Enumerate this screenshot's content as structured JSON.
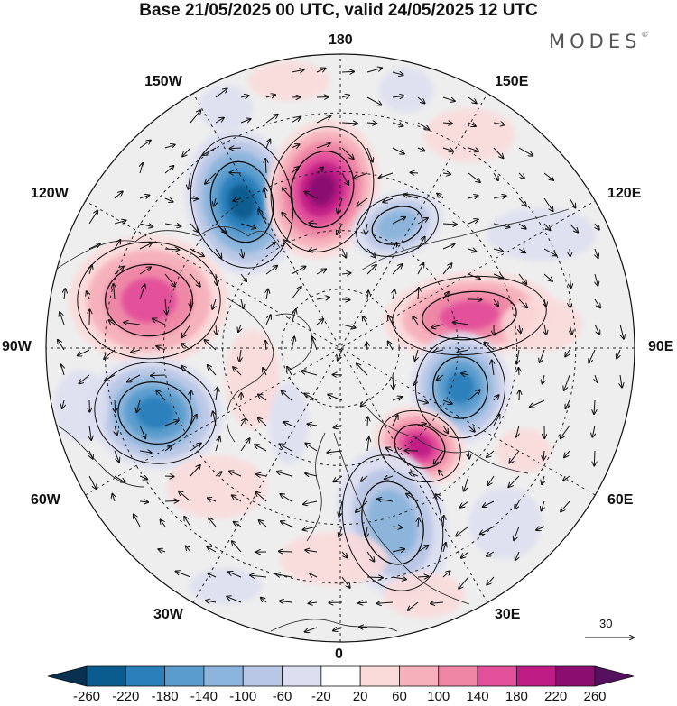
{
  "title": "Base 21/05/2025 00 UTC, valid 24/05/2025 12 UTC",
  "brand": "MODES",
  "brand_mark": "©",
  "longitude_labels": {
    "top": "180",
    "bottom": "0",
    "left": "90W",
    "right": "90E",
    "upper_left_far": "120W",
    "upper_left_near": "150W",
    "upper_right_near": "150E",
    "upper_right_far": "120E",
    "lower_left_far": "60W",
    "lower_left_near": "30W",
    "lower_right_near": "30E",
    "lower_right_far": "60E"
  },
  "vector_scale": {
    "label": "30"
  },
  "colorbar": {
    "labels": [
      "-260",
      "-220",
      "-180",
      "-140",
      "-100",
      "-60",
      "-20",
      "20",
      "60",
      "100",
      "140",
      "180",
      "220",
      "260"
    ],
    "colors": [
      "#08304f",
      "#0b5c8e",
      "#2b7fbb",
      "#5a9ccd",
      "#8bb5dc",
      "#b9c7e6",
      "#dcdff0",
      "#ffffff",
      "#fbdada",
      "#f6b0bb",
      "#ef86a6",
      "#e2509a",
      "#bf1d85",
      "#8a0d6f",
      "#561060"
    ]
  },
  "map": {
    "projection": "north-polar-stereographic",
    "background": "#eeeeee",
    "anomaly_centers": [
      {
        "name": "low-north-pacific-west",
        "sign": "negative",
        "level": -220
      },
      {
        "name": "high-north-pacific",
        "sign": "positive",
        "level": 220
      },
      {
        "name": "high-north-america",
        "sign": "positive",
        "level": 140
      },
      {
        "name": "low-north-atlantic-west",
        "sign": "negative",
        "level": -180
      },
      {
        "name": "low-east-siberia",
        "sign": "negative",
        "level": -100
      },
      {
        "name": "high-siberia",
        "sign": "positive",
        "level": 140
      },
      {
        "name": "low-central-siberia",
        "sign": "negative",
        "level": -180
      },
      {
        "name": "high-scandinavia-russia",
        "sign": "positive",
        "level": 180
      },
      {
        "name": "low-europe",
        "sign": "negative",
        "level": -100
      }
    ]
  }
}
